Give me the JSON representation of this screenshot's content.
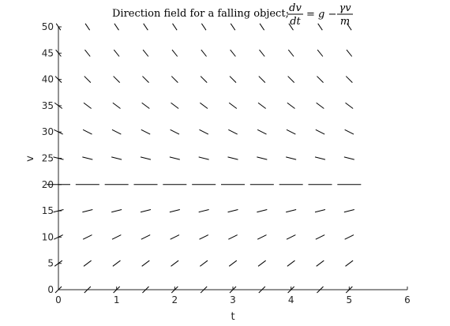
{
  "chart_data": {
    "type": "direction-field",
    "title_prefix": "Direction field for a falling object;",
    "equation": {
      "lhs_num": "dv",
      "lhs_den": "dt",
      "middle": "= g −",
      "rhs_num": "γv",
      "rhs_den": "m"
    },
    "xlabel": "t",
    "ylabel": "v",
    "xlim": [
      0,
      6
    ],
    "ylim": [
      0,
      50
    ],
    "xticks": [
      "0",
      "1",
      "2",
      "3",
      "4",
      "5",
      "6"
    ],
    "yticks": [
      "0",
      "5",
      "10",
      "15",
      "20",
      "25",
      "30",
      "35",
      "40",
      "45",
      "50"
    ],
    "x": [
      0,
      0.5,
      1,
      1.5,
      2,
      2.5,
      3,
      3.5,
      4,
      4.5,
      5
    ],
    "v": [
      0,
      5,
      10,
      15,
      20,
      25,
      30,
      35,
      40,
      45,
      50
    ],
    "equilibrium_v": 20,
    "grid": false
  }
}
